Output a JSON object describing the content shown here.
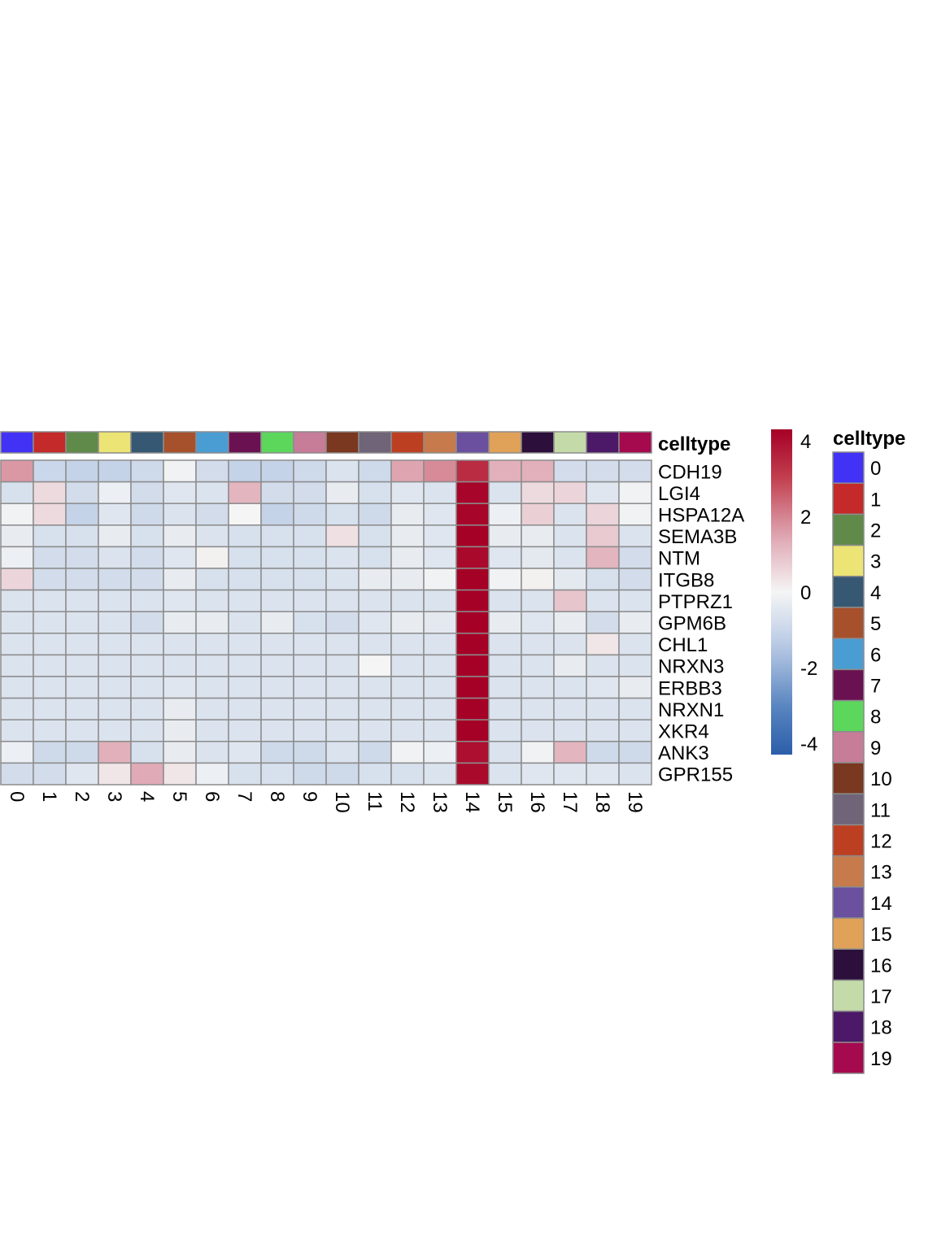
{
  "chart_data": {
    "type": "heatmap",
    "columns": [
      "0",
      "1",
      "2",
      "3",
      "4",
      "5",
      "6",
      "7",
      "8",
      "9",
      "10",
      "11",
      "12",
      "13",
      "14",
      "15",
      "16",
      "17",
      "18",
      "19"
    ],
    "rows": [
      "CDH19",
      "LGI4",
      "HSPA12A",
      "SEMA3B",
      "NTM",
      "ITGB8",
      "PTPRZ1",
      "GPM6B",
      "CHL1",
      "NRXN3",
      "ERBB3",
      "NRXN1",
      "XKR4",
      "ANK3",
      "GPR155"
    ],
    "values": [
      [
        1.7,
        -1.0,
        -1.1,
        -1.1,
        -0.9,
        -0.1,
        -0.8,
        -1.1,
        -1.1,
        -0.9,
        -0.6,
        -0.9,
        1.5,
        1.9,
        3.4,
        1.3,
        1.3,
        -0.8,
        -0.8,
        -0.8
      ],
      [
        -0.7,
        0.5,
        -0.8,
        -0.2,
        -0.8,
        -0.5,
        -0.6,
        1.2,
        -0.8,
        -0.8,
        -0.3,
        -0.7,
        -0.5,
        -0.6,
        4.2,
        -0.6,
        0.5,
        0.6,
        -0.5,
        -0.1
      ],
      [
        -0.1,
        0.5,
        -1.1,
        -0.5,
        -0.9,
        -0.6,
        -0.8,
        0.0,
        -1.1,
        -0.9,
        -0.7,
        -0.9,
        -0.3,
        -0.5,
        4.2,
        -0.2,
        0.7,
        -0.6,
        0.6,
        -0.1
      ],
      [
        -0.3,
        -0.7,
        -0.7,
        -0.3,
        -0.7,
        -0.3,
        -0.6,
        -0.7,
        -0.7,
        -0.7,
        0.4,
        -0.7,
        -0.3,
        -0.5,
        4.3,
        -0.3,
        -0.3,
        -0.6,
        0.8,
        -0.6
      ],
      [
        -0.2,
        -0.8,
        -0.8,
        -0.6,
        -0.8,
        -0.5,
        0.1,
        -0.7,
        -0.7,
        -0.7,
        -0.6,
        -0.7,
        -0.3,
        -0.5,
        4.1,
        -0.5,
        -0.4,
        -0.6,
        1.2,
        -0.8
      ],
      [
        0.6,
        -0.8,
        -0.8,
        -0.8,
        -0.8,
        -0.3,
        -0.7,
        -0.7,
        -0.7,
        -0.7,
        -0.6,
        -0.3,
        -0.3,
        -0.1,
        4.3,
        -0.1,
        0.1,
        -0.4,
        -0.7,
        -0.8
      ],
      [
        -0.6,
        -0.6,
        -0.6,
        -0.6,
        -0.6,
        -0.5,
        -0.6,
        -0.6,
        -0.6,
        -0.6,
        -0.6,
        -0.6,
        -0.6,
        -0.6,
        4.3,
        -0.6,
        -0.6,
        0.9,
        -0.6,
        -0.6
      ],
      [
        -0.6,
        -0.6,
        -0.6,
        -0.6,
        -0.8,
        -0.3,
        -0.3,
        -0.6,
        -0.3,
        -0.7,
        -0.8,
        -0.5,
        -0.3,
        -0.4,
        4.3,
        -0.3,
        -0.5,
        -0.3,
        -0.8,
        -0.3
      ],
      [
        -0.6,
        -0.6,
        -0.6,
        -0.6,
        -0.6,
        -0.6,
        -0.6,
        -0.6,
        -0.6,
        -0.6,
        -0.6,
        -0.6,
        -0.6,
        -0.6,
        4.3,
        -0.6,
        -0.6,
        -0.6,
        0.3,
        -0.6
      ],
      [
        -0.6,
        -0.6,
        -0.6,
        -0.6,
        -0.6,
        -0.6,
        -0.6,
        -0.6,
        -0.6,
        -0.6,
        -0.6,
        0.0,
        -0.6,
        -0.6,
        4.3,
        -0.6,
        -0.6,
        -0.3,
        -0.6,
        -0.6
      ],
      [
        -0.6,
        -0.6,
        -0.6,
        -0.6,
        -0.6,
        -0.5,
        -0.6,
        -0.6,
        -0.6,
        -0.6,
        -0.6,
        -0.6,
        -0.6,
        -0.6,
        4.3,
        -0.6,
        -0.6,
        -0.6,
        -0.5,
        -0.3
      ],
      [
        -0.6,
        -0.6,
        -0.6,
        -0.6,
        -0.6,
        -0.3,
        -0.6,
        -0.6,
        -0.6,
        -0.6,
        -0.6,
        -0.6,
        -0.6,
        -0.6,
        4.3,
        -0.6,
        -0.6,
        -0.6,
        -0.6,
        -0.6
      ],
      [
        -0.6,
        -0.6,
        -0.6,
        -0.6,
        -0.6,
        -0.3,
        -0.6,
        -0.6,
        -0.6,
        -0.6,
        -0.6,
        -0.6,
        -0.6,
        -0.6,
        4.3,
        -0.6,
        -0.6,
        -0.6,
        -0.6,
        -0.6
      ],
      [
        -0.2,
        -0.9,
        -0.9,
        1.3,
        -0.7,
        -0.3,
        -0.6,
        -0.5,
        -0.9,
        -0.9,
        -0.6,
        -0.9,
        -0.1,
        -0.2,
        4.0,
        -0.6,
        -0.1,
        1.2,
        -0.9,
        -0.9
      ],
      [
        -0.8,
        -0.8,
        -0.5,
        0.3,
        1.4,
        0.3,
        -0.2,
        -0.7,
        -0.7,
        -0.9,
        -0.9,
        -0.7,
        -0.7,
        -0.6,
        4.1,
        -0.6,
        -0.5,
        -0.5,
        -0.5,
        -0.6
      ]
    ],
    "color_range": [
      -4.3,
      4.3
    ],
    "colorbar": {
      "ticks": [
        4,
        2,
        0,
        -2,
        -4
      ],
      "low_color": "#2b5ea9",
      "mid_color": "#f5f5f5",
      "high_color": "#a50026"
    },
    "annotation": {
      "title": "celltype",
      "categories": [
        "0",
        "1",
        "2",
        "3",
        "4",
        "5",
        "6",
        "7",
        "8",
        "9",
        "10",
        "11",
        "12",
        "13",
        "14",
        "15",
        "16",
        "17",
        "18",
        "19"
      ],
      "colors": [
        "#4232f5",
        "#c32a29",
        "#5f8a49",
        "#ece474",
        "#375872",
        "#a7502c",
        "#4a9dd3",
        "#6a1251",
        "#5dd65c",
        "#c77c98",
        "#79381f",
        "#6f6478",
        "#bd3f22",
        "#c77b4c",
        "#6a509f",
        "#e0a158",
        "#2c0f3a",
        "#c4dba9",
        "#4b1967",
        "#a5094e"
      ]
    }
  }
}
